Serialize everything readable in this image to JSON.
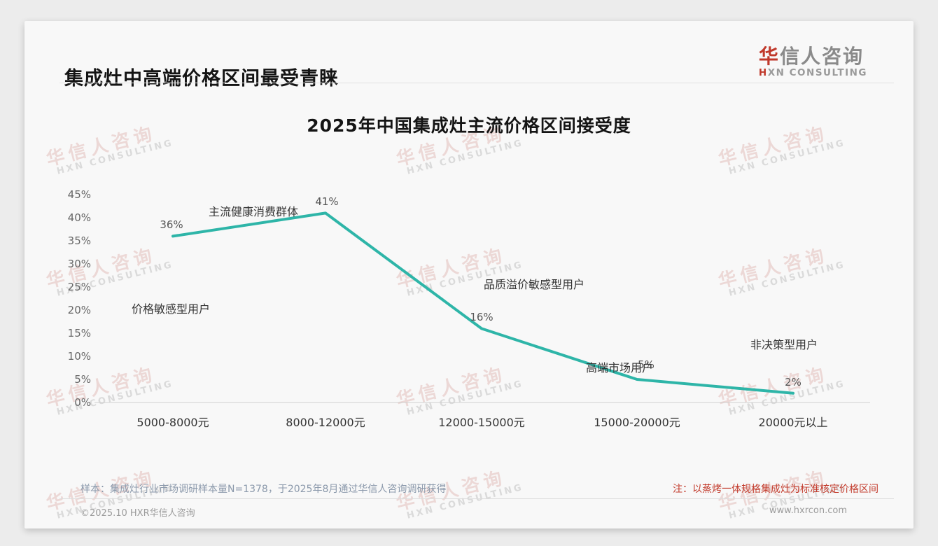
{
  "page": {
    "header_title": "集成灶中高端价格区间最受青睐",
    "logo": {
      "cn_red": "华",
      "cn_gray": "信人咨询",
      "en_red": "H",
      "en_gray": "XN CONSULTING"
    },
    "watermark": {
      "line1": "华信人咨询",
      "line2": "HXN CONSULTING"
    },
    "footer": {
      "sample_note": "样本：集成灶行业市场调研样本量N=1378，于2025年8月通过华信人咨询调研获得",
      "red_note": "注：以蒸烤一体规格集成灶为标准核定价格区间",
      "copyright": "©2025.10 HXR华信人咨询",
      "website": "www.hxrcon.com"
    },
    "colors": {
      "accent_red": "#c0392b",
      "line_teal": "#2eb5a8"
    }
  },
  "chart_data": {
    "type": "line",
    "title": "2025年中国集成灶主流价格区间接受度",
    "categories": [
      "5000-8000元",
      "8000-12000元",
      "12000-15000元",
      "15000-20000元",
      "20000元以上"
    ],
    "values": [
      36,
      41,
      16,
      5,
      2
    ],
    "unit": "%",
    "point_labels": [
      "36%",
      "41%",
      "16%",
      "5%",
      "2%"
    ],
    "annotations": [
      "价格敏感型用户",
      "主流健康消费群体",
      "品质溢价敏感型用户",
      "高端市场用户",
      "非决策型用户"
    ],
    "ylim": [
      0,
      45
    ],
    "yticks": [
      0,
      5,
      10,
      15,
      20,
      25,
      30,
      35,
      40,
      45
    ],
    "grid": false,
    "legend": "none",
    "line_color": "#2eb5a8",
    "xlabel": "",
    "ylabel": ""
  }
}
